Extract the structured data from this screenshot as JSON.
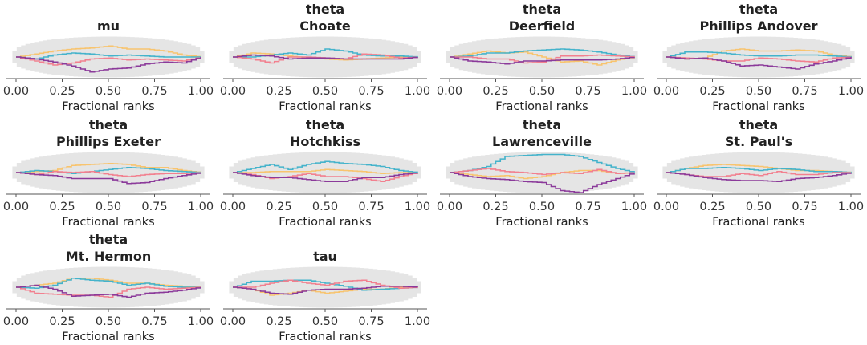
{
  "chart_data": [
    {
      "type": "line",
      "title": [
        "mu"
      ],
      "xlabel": "Fractional ranks",
      "xlim": [
        0,
        1
      ],
      "xticks": [
        "0.00",
        "0.25",
        "0.50",
        "0.75",
        "1.00"
      ],
      "x": [
        0,
        0.1,
        0.2,
        0.3,
        0.4,
        0.5,
        0.6,
        0.7,
        0.8,
        0.9,
        1.0
      ],
      "series": [
        {
          "values": [
            0,
            0.15,
            0.3,
            0.4,
            0.45,
            0.55,
            0.4,
            0.4,
            0.3,
            0.1,
            0
          ]
        },
        {
          "values": [
            0,
            -0.1,
            0.1,
            0.2,
            0.15,
            0.05,
            0.1,
            0.05,
            0,
            0,
            0
          ]
        },
        {
          "values": [
            0,
            -0.2,
            -0.4,
            -0.3,
            -0.1,
            -0.05,
            -0.15,
            -0.1,
            -0.15,
            -0.2,
            0
          ]
        },
        {
          "values": [
            0,
            -0.1,
            -0.25,
            -0.45,
            -0.75,
            -0.6,
            -0.55,
            -0.35,
            -0.25,
            -0.3,
            0
          ]
        }
      ]
    },
    {
      "type": "line",
      "title": [
        "theta",
        "Choate"
      ],
      "xlabel": "Fractional ranks",
      "xlim": [
        0,
        1
      ],
      "xticks": [
        "0.00",
        "0.25",
        "0.50",
        "0.75",
        "1.00"
      ],
      "x": [
        0,
        0.1,
        0.2,
        0.3,
        0.4,
        0.5,
        0.6,
        0.7,
        0.8,
        0.9,
        1.0
      ],
      "series": [
        {
          "values": [
            0,
            0.2,
            0.15,
            0.05,
            -0.05,
            -0.1,
            -0.15,
            -0.1,
            -0.05,
            0,
            0
          ]
        },
        {
          "values": [
            0,
            0,
            0.1,
            0.2,
            0.1,
            0.4,
            0.3,
            0.1,
            0.05,
            0.05,
            0
          ]
        },
        {
          "values": [
            0,
            -0.1,
            -0.3,
            0,
            0,
            -0.05,
            -0.1,
            0.15,
            0.1,
            -0.05,
            0
          ]
        },
        {
          "values": [
            0,
            0.1,
            0.05,
            -0.1,
            -0.05,
            -0.05,
            -0.1,
            -0.1,
            -0.1,
            -0.1,
            0
          ]
        }
      ]
    },
    {
      "type": "line",
      "title": [
        "theta",
        "Deerfield"
      ],
      "xlabel": "Fractional ranks",
      "xlim": [
        0,
        1
      ],
      "xticks": [
        "0.00",
        "0.25",
        "0.50",
        "0.75",
        "1.00"
      ],
      "x": [
        0,
        0.1,
        0.2,
        0.3,
        0.4,
        0.5,
        0.6,
        0.7,
        0.8,
        0.9,
        1.0
      ],
      "series": [
        {
          "values": [
            0,
            0.15,
            0.3,
            0.2,
            0.25,
            0,
            -0.25,
            -0.2,
            -0.4,
            -0.15,
            0
          ]
        },
        {
          "values": [
            0,
            0.05,
            0.2,
            0.2,
            0.3,
            0.35,
            0.4,
            0.35,
            0.25,
            0.1,
            0
          ]
        },
        {
          "values": [
            0,
            0,
            -0.1,
            -0.1,
            -0.3,
            -0.25,
            0.05,
            0.05,
            0.1,
            0.05,
            0
          ]
        },
        {
          "values": [
            0,
            -0.2,
            -0.25,
            -0.35,
            -0.2,
            -0.2,
            -0.15,
            -0.15,
            -0.15,
            -0.1,
            0
          ]
        }
      ]
    },
    {
      "type": "line",
      "title": [
        "theta",
        "Phillips Andover"
      ],
      "xlabel": "Fractional ranks",
      "xlim": [
        0,
        1
      ],
      "xticks": [
        "0.00",
        "0.25",
        "0.50",
        "0.75",
        "1.00"
      ],
      "x": [
        0,
        0.1,
        0.2,
        0.3,
        0.4,
        0.5,
        0.6,
        0.7,
        0.8,
        0.9,
        1.0
      ],
      "series": [
        {
          "values": [
            0,
            -0.1,
            -0.05,
            0.3,
            0.4,
            0.3,
            0.3,
            0.35,
            0.3,
            0.1,
            0
          ]
        },
        {
          "values": [
            0,
            0.25,
            0.25,
            0.2,
            0.1,
            0.05,
            0.05,
            0.1,
            0.1,
            0.05,
            0
          ]
        },
        {
          "values": [
            0,
            -0.05,
            -0.1,
            -0.2,
            -0.2,
            -0.05,
            -0.1,
            -0.2,
            -0.25,
            -0.05,
            0
          ]
        },
        {
          "values": [
            0,
            -0.1,
            -0.05,
            -0.2,
            -0.45,
            -0.4,
            -0.5,
            -0.6,
            -0.35,
            -0.2,
            0
          ]
        }
      ]
    },
    {
      "type": "line",
      "title": [
        "theta",
        "Phillips Exeter"
      ],
      "xlabel": "Fractional ranks",
      "xlim": [
        0,
        1
      ],
      "xticks": [
        "0.00",
        "0.25",
        "0.50",
        "0.75",
        "1.00"
      ],
      "x": [
        0,
        0.1,
        0.2,
        0.3,
        0.4,
        0.5,
        0.6,
        0.7,
        0.8,
        0.9,
        1.0
      ],
      "series": [
        {
          "values": [
            0,
            0.05,
            0.1,
            0.35,
            0.4,
            0.45,
            0.4,
            0.25,
            0.25,
            0.1,
            0
          ]
        },
        {
          "values": [
            0,
            0.1,
            0.05,
            -0.05,
            0.05,
            0.15,
            0.25,
            0.2,
            0.1,
            0.05,
            0
          ]
        },
        {
          "values": [
            0,
            -0.1,
            0.05,
            0,
            0.05,
            -0.1,
            -0.2,
            -0.1,
            -0.05,
            -0.05,
            0
          ]
        },
        {
          "values": [
            0,
            -0.1,
            -0.15,
            -0.3,
            -0.3,
            -0.3,
            -0.55,
            -0.5,
            -0.3,
            -0.15,
            0
          ]
        }
      ]
    },
    {
      "type": "line",
      "title": [
        "theta",
        "Hotchkiss"
      ],
      "xlabel": "Fractional ranks",
      "xlim": [
        0,
        1
      ],
      "xticks": [
        "0.00",
        "0.25",
        "0.50",
        "0.75",
        "1.00"
      ],
      "x": [
        0,
        0.1,
        0.2,
        0.3,
        0.4,
        0.5,
        0.6,
        0.7,
        0.8,
        0.9,
        1.0
      ],
      "series": [
        {
          "values": [
            0,
            0,
            0.05,
            0.05,
            0.05,
            0.15,
            0.1,
            0.05,
            -0.05,
            0,
            0
          ]
        },
        {
          "values": [
            0,
            0.2,
            0.4,
            0.15,
            0.4,
            0.55,
            0.45,
            0.4,
            0.3,
            0.1,
            0
          ]
        },
        {
          "values": [
            0,
            -0.1,
            -0.3,
            -0.2,
            -0.05,
            -0.2,
            -0.2,
            -0.3,
            -0.45,
            -0.2,
            0
          ]
        },
        {
          "values": [
            0,
            -0.15,
            -0.25,
            -0.25,
            -0.35,
            -0.45,
            -0.45,
            -0.25,
            -0.25,
            -0.1,
            0
          ]
        }
      ]
    },
    {
      "type": "line",
      "title": [
        "theta",
        "Lawrenceville"
      ],
      "xlabel": "Fractional ranks",
      "xlim": [
        0,
        1
      ],
      "xticks": [
        "0.00",
        "0.25",
        "0.50",
        "0.75",
        "1.00"
      ],
      "x": [
        0,
        0.1,
        0.2,
        0.3,
        0.4,
        0.5,
        0.6,
        0.7,
        0.8,
        0.9,
        1.0
      ],
      "series": [
        {
          "values": [
            0,
            -0.1,
            -0.2,
            -0.15,
            -0.3,
            -0.2,
            0,
            0.1,
            0.1,
            -0.05,
            0
          ]
        },
        {
          "values": [
            0,
            0.1,
            0.3,
            0.8,
            0.85,
            0.9,
            0.9,
            0.8,
            0.5,
            0.2,
            0
          ]
        },
        {
          "values": [
            0,
            0.1,
            0.2,
            0.05,
            0,
            -0.1,
            0,
            -0.05,
            0.15,
            -0.05,
            0
          ]
        },
        {
          "values": [
            0,
            -0.2,
            -0.3,
            -0.35,
            -0.45,
            -0.5,
            -0.9,
            -1.0,
            -0.6,
            -0.3,
            0
          ]
        }
      ]
    },
    {
      "type": "line",
      "title": [
        "theta",
        "St. Paul's"
      ],
      "xlabel": "Fractional ranks",
      "xlim": [
        0,
        1
      ],
      "xticks": [
        "0.00",
        "0.25",
        "0.50",
        "0.75",
        "1.00"
      ],
      "x": [
        0,
        0.1,
        0.2,
        0.3,
        0.4,
        0.5,
        0.6,
        0.7,
        0.8,
        0.9,
        1.0
      ],
      "series": [
        {
          "values": [
            0,
            0.2,
            0.35,
            0.4,
            0.35,
            0.3,
            0.2,
            0.1,
            0.1,
            0.05,
            0
          ]
        },
        {
          "values": [
            0,
            0.2,
            0.2,
            0.25,
            0.2,
            0.1,
            0.2,
            0.15,
            0.05,
            0.05,
            0
          ]
        },
        {
          "values": [
            0,
            -0.1,
            -0.2,
            -0.2,
            -0.05,
            -0.15,
            0.05,
            -0.1,
            -0.1,
            0,
            0
          ]
        },
        {
          "values": [
            0,
            -0.1,
            -0.25,
            -0.35,
            -0.4,
            -0.4,
            -0.45,
            -0.3,
            -0.25,
            -0.15,
            0
          ]
        }
      ]
    },
    {
      "type": "line",
      "title": [
        "theta",
        "Mt. Hermon"
      ],
      "xlabel": "Fractional ranks",
      "xlim": [
        0,
        1
      ],
      "xticks": [
        "0.00",
        "0.25",
        "0.50",
        "0.75",
        "1.00"
      ],
      "x": [
        0,
        0.1,
        0.2,
        0.3,
        0.4,
        0.5,
        0.6,
        0.7,
        0.8,
        0.9,
        1.0
      ],
      "series": [
        {
          "values": [
            0,
            0.1,
            0.2,
            0.45,
            0.45,
            0.35,
            0.2,
            0.2,
            0.1,
            0.05,
            0
          ]
        },
        {
          "values": [
            0,
            -0.05,
            0.1,
            0.45,
            0.35,
            0.3,
            0.1,
            0.2,
            0.05,
            0,
            0
          ]
        },
        {
          "values": [
            0,
            -0.3,
            -0.35,
            -0.4,
            -0.4,
            -0.5,
            -0.1,
            0,
            -0.1,
            -0.05,
            0
          ]
        },
        {
          "values": [
            0,
            0.1,
            -0.1,
            -0.45,
            -0.4,
            -0.35,
            -0.5,
            -0.3,
            -0.25,
            -0.15,
            0
          ]
        }
      ]
    },
    {
      "type": "line",
      "title": [
        "tau"
      ],
      "xlabel": "Fractional ranks",
      "xlim": [
        0,
        1
      ],
      "xticks": [
        "0.00",
        "0.25",
        "0.50",
        "0.75",
        "1.00"
      ],
      "x": [
        0,
        0.1,
        0.2,
        0.3,
        0.4,
        0.5,
        0.6,
        0.7,
        0.8,
        0.9,
        1.0
      ],
      "series": [
        {
          "values": [
            0,
            -0.1,
            -0.4,
            -0.3,
            -0.15,
            -0.3,
            -0.2,
            -0.1,
            -0.1,
            0,
            0
          ]
        },
        {
          "values": [
            0,
            0.3,
            0.3,
            0.35,
            0.35,
            0.2,
            0.05,
            -0.15,
            -0.1,
            -0.05,
            0
          ]
        },
        {
          "values": [
            0,
            0,
            0.2,
            0.35,
            0.2,
            0.1,
            0.3,
            0.35,
            0.1,
            -0.05,
            0
          ]
        },
        {
          "values": [
            0,
            -0.1,
            -0.3,
            -0.35,
            -0.15,
            -0.1,
            -0.1,
            -0.05,
            0.05,
            0.05,
            0
          ]
        }
      ]
    }
  ],
  "colors": {
    "series": [
      "#F8C46E",
      "#44B3CB",
      "#F2808F",
      "#8B3A9A"
    ],
    "envelope": "#E5E5E5",
    "axis": "#555555"
  }
}
